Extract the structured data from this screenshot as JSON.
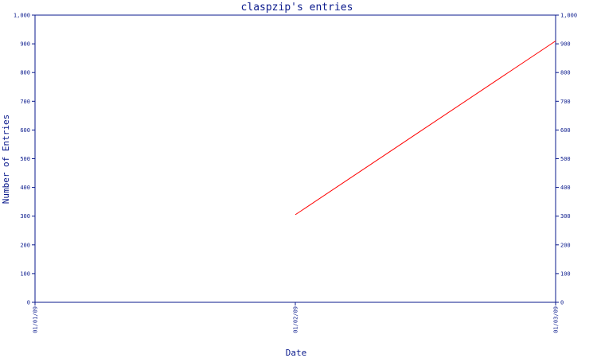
{
  "chart_data": {
    "type": "line",
    "title": "claspzip's entries",
    "xlabel": "Date",
    "ylabel": "Number of Entries",
    "x_categories": [
      "01/01/09",
      "01/02/09",
      "01/03/09"
    ],
    "ylim": [
      0,
      1000
    ],
    "y_ticks": [
      0,
      100,
      200,
      300,
      400,
      500,
      600,
      700,
      800,
      900,
      1000
    ],
    "y_tick_labels": [
      "0",
      "100",
      "200",
      "300",
      "400",
      "500",
      "600",
      "700",
      "800",
      "900",
      "1,000"
    ],
    "series": [
      {
        "x": [
          "01/02/09",
          "01/03/09"
        ],
        "y": [
          305,
          910
        ],
        "color": "#ff0000"
      }
    ],
    "axis_color": "#0a1a8c",
    "grid": false
  }
}
